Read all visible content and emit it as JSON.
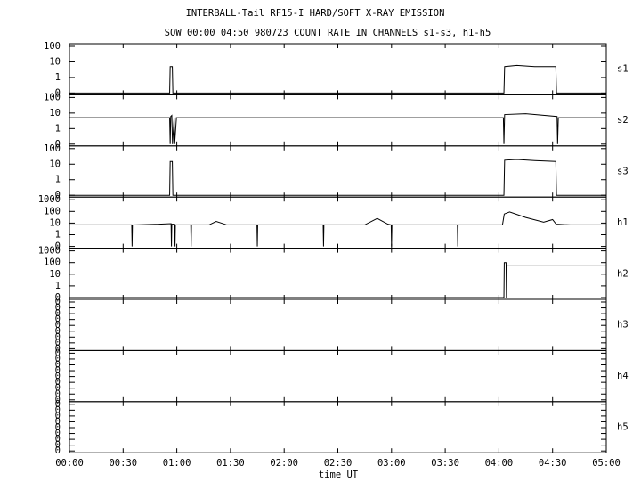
{
  "chart_data": {
    "type": "line",
    "title": "INTERBALL-Tail RF15-I HARD/SOFT X-RAY EMISSION",
    "subtitle": "SOW 00:00 04:50 980723  COUNT RATE IN CHANNELS s1-s3, h1-h5",
    "xlabel": "time UT",
    "xlim": [
      0,
      300
    ],
    "xticks": [
      {
        "value": 0,
        "label": "00:00"
      },
      {
        "value": 30,
        "label": "00:30"
      },
      {
        "value": 60,
        "label": "01:00"
      },
      {
        "value": 90,
        "label": "01:30"
      },
      {
        "value": 120,
        "label": "02:00"
      },
      {
        "value": 150,
        "label": "02:30"
      },
      {
        "value": 180,
        "label": "03:00"
      },
      {
        "value": 210,
        "label": "03:30"
      },
      {
        "value": 240,
        "label": "04:00"
      },
      {
        "value": 270,
        "label": "04:30"
      },
      {
        "value": 300,
        "label": "05:00"
      }
    ],
    "color": "#000000",
    "panels": [
      {
        "name": "s1",
        "log": true,
        "ylim": [
          0,
          100
        ],
        "yticks": [
          0,
          1,
          10,
          100
        ],
        "x": [
          0,
          56,
          56.3,
          57.5,
          57.8,
          242.8,
          243.2,
          250,
          260,
          271.8,
          272.2,
          300
        ],
        "values": [
          0,
          0,
          5,
          5,
          0,
          0,
          5,
          6,
          5,
          5,
          0,
          0
        ]
      },
      {
        "name": "s2",
        "log": true,
        "ylim": [
          0,
          100
        ],
        "yticks": [
          0,
          1,
          10,
          100
        ],
        "x": [
          0,
          30,
          56,
          56.3,
          56.6,
          57.2,
          57.6,
          58.5,
          58.8,
          59.8,
          60.1,
          100,
          150,
          200,
          242.5,
          242.8,
          243.2,
          255,
          272.5,
          272.8,
          273.2,
          300
        ],
        "values": [
          5,
          5,
          5,
          0,
          6,
          7,
          0,
          5,
          0,
          5,
          5,
          5,
          5,
          5,
          5,
          0,
          8,
          9,
          6,
          0,
          5,
          5
        ]
      },
      {
        "name": "s3",
        "log": true,
        "ylim": [
          0,
          100
        ],
        "yticks": [
          0,
          1,
          10,
          100
        ],
        "x": [
          0,
          56,
          56.3,
          57.5,
          57.8,
          242.8,
          243.2,
          250,
          260,
          271.8,
          272.2,
          300
        ],
        "values": [
          0,
          0,
          15,
          15,
          0,
          0,
          18,
          20,
          17,
          15,
          0,
          0
        ]
      },
      {
        "name": "h1",
        "log": true,
        "ylim": [
          0,
          1000
        ],
        "yticks": [
          0,
          1,
          10,
          100,
          1000
        ],
        "x": [
          0,
          34.8,
          35,
          35.2,
          50,
          56.8,
          57,
          57.2,
          58.8,
          59,
          59.2,
          67.8,
          68,
          68.2,
          78,
          82,
          88,
          104.8,
          105,
          105.2,
          141.8,
          142,
          142.2,
          165,
          172,
          178,
          179.8,
          180,
          180.2,
          216.8,
          217,
          217.2,
          242,
          243,
          246,
          255,
          265,
          270,
          272,
          280,
          300
        ],
        "values": [
          7,
          7,
          0,
          7,
          8,
          9,
          0,
          8,
          8,
          0,
          7,
          7,
          0,
          7,
          7,
          14,
          7,
          7,
          0,
          7,
          7,
          0,
          7,
          7,
          25,
          8,
          7,
          0,
          7,
          7,
          0,
          7,
          7,
          60,
          90,
          30,
          12,
          20,
          8,
          7,
          7
        ]
      },
      {
        "name": "h2",
        "log": true,
        "ylim": [
          0,
          1000
        ],
        "yticks": [
          0,
          1,
          10,
          100,
          1000
        ],
        "x": [
          0,
          242.8,
          243,
          244,
          244.2,
          244.4,
          300
        ],
        "values": [
          0,
          0,
          100,
          100,
          0,
          60,
          60
        ]
      },
      {
        "name": "h3",
        "log": false,
        "ylim": [
          -0.0004,
          0.0004
        ],
        "yticks": [
          {
            "value": -0.0004,
            "label": "0"
          },
          {
            "value": -0.0003,
            "label": "0"
          },
          {
            "value": -0.0002,
            "label": "0"
          },
          {
            "value": -0.0001,
            "label": "0"
          },
          {
            "value": 0,
            "label": "0"
          },
          {
            "value": 0.0001,
            "label": "0"
          },
          {
            "value": 0.0002,
            "label": "0"
          },
          {
            "value": 0.0003,
            "label": "0"
          },
          {
            "value": 0.0004,
            "label": "0"
          }
        ]
      },
      {
        "name": "h4",
        "log": false,
        "ylim": [
          -0.0004,
          0.0004
        ],
        "yticks": [
          {
            "value": -0.0004,
            "label": "0"
          },
          {
            "value": -0.0003,
            "label": "0"
          },
          {
            "value": -0.0002,
            "label": "0"
          },
          {
            "value": -0.0001,
            "label": "0"
          },
          {
            "value": 0,
            "label": "0"
          },
          {
            "value": 0.0001,
            "label": "0"
          },
          {
            "value": 0.0002,
            "label": "0"
          },
          {
            "value": 0.0003,
            "label": "0"
          },
          {
            "value": 0.0004,
            "label": "0"
          }
        ]
      },
      {
        "name": "h5",
        "log": false,
        "ylim": [
          -0.0004,
          0.0004
        ],
        "yticks": [
          {
            "value": -0.0004,
            "label": "0"
          },
          {
            "value": -0.0003,
            "label": "0"
          },
          {
            "value": -0.0002,
            "label": "0"
          },
          {
            "value": -0.0001,
            "label": "0"
          },
          {
            "value": 0,
            "label": "0"
          },
          {
            "value": 0.0001,
            "label": "0"
          },
          {
            "value": 0.0002,
            "label": "0"
          },
          {
            "value": 0.0003,
            "label": "0"
          },
          {
            "value": 0.0004,
            "label": "0"
          }
        ]
      }
    ]
  }
}
